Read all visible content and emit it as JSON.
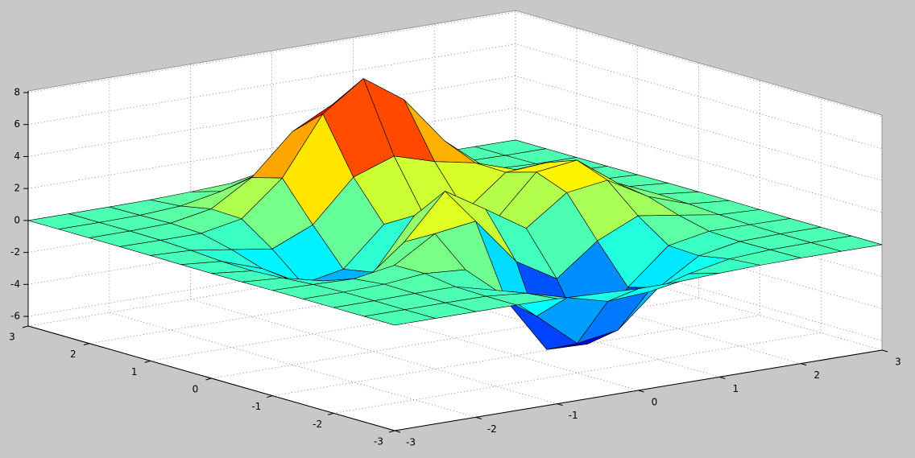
{
  "chart_data": {
    "type": "surface",
    "x": [
      -3,
      -2.5,
      -2,
      -1.5,
      -1,
      -0.5,
      0,
      0.5,
      1,
      1.5,
      2,
      2.5,
      3
    ],
    "y": [
      -3,
      -2.5,
      -2,
      -1.5,
      -1,
      -0.5,
      0,
      0.5,
      1,
      1.5,
      2,
      2.5,
      3
    ],
    "z": [
      [
        0,
        0,
        0,
        0,
        -0.03,
        -0.14,
        -0.24,
        -0.22,
        -0.11,
        -0.03,
        0,
        0,
        0
      ],
      [
        0,
        0,
        0.01,
        0,
        -0.23,
        -0.92,
        -1.57,
        -1.41,
        -0.69,
        -0.18,
        -0.03,
        0,
        0
      ],
      [
        0,
        0.01,
        0.05,
        0.05,
        -0.59,
        -2.63,
        -4.75,
        -4.34,
        -2.1,
        -0.53,
        -0.06,
        0,
        0
      ],
      [
        0,
        0.01,
        0.08,
        0.33,
        0.15,
        -2.19,
        -5.68,
        -5.76,
        -2.63,
        -0.44,
        0.04,
        0.03,
        0
      ],
      [
        -0.01,
        -0.06,
        -0.13,
        0.3,
        1.86,
        2.22,
        -0.72,
        -2.22,
        -0.27,
        0.88,
        0.5,
        0.11,
        0.01
      ],
      [
        -0.03,
        -0.2,
        -0.8,
        -1.21,
        0.8,
        3.55,
        2.0,
        0.39,
        2.2,
        2.56,
        1.12,
        0.24,
        0.03
      ],
      [
        -0.04,
        -0.3,
        -1.33,
        -2.77,
        -1.65,
        1.48,
        0.98,
        0.37,
        2.94,
        3.27,
        1.41,
        0.3,
        0.03
      ],
      [
        -0.03,
        -0.25,
        -1.12,
        -2.49,
        -2.0,
        0.39,
        0.46,
        0.38,
        2.38,
        2.56,
        1.09,
        0.23,
        0.03
      ],
      [
        -0.01,
        -0.11,
        -0.48,
        -0.86,
        0.23,
        2.79,
        3.69,
        2.93,
        2.43,
        1.58,
        0.58,
        0.11,
        0.01
      ],
      [
        0,
        -0.02,
        -0.01,
        0.48,
        2.61,
        6.2,
        8.0,
        6.25,
        3.25,
        1.19,
        0.29,
        0.05,
        0
      ],
      [
        0,
        0.01,
        0.08,
        0.55,
        2.1,
        4.55,
        5.85,
        4.56,
        2.21,
        0.68,
        0.13,
        0.02,
        0
      ],
      [
        0,
        0,
        0.03,
        0.19,
        0.69,
        1.47,
        1.88,
        1.47,
        0.7,
        0.2,
        0.04,
        0,
        0
      ],
      [
        0,
        0,
        0.01,
        0.03,
        0.11,
        0.23,
        0.3,
        0.23,
        0.11,
        0.03,
        0.01,
        0,
        0
      ]
    ],
    "xlim": [
      -3,
      3
    ],
    "ylim": [
      -3,
      3
    ],
    "zlim": [
      -6.6,
      8.1
    ],
    "xticks": [
      -3,
      -2,
      -1,
      0,
      1,
      2,
      3
    ],
    "yticks": [
      -3,
      -2,
      -1,
      0,
      1,
      2,
      3
    ],
    "zticks": [
      -6,
      -4,
      -2,
      0,
      2,
      4,
      6,
      8
    ],
    "colormap": "jet",
    "edgecolor": "#000000",
    "grid": true
  }
}
